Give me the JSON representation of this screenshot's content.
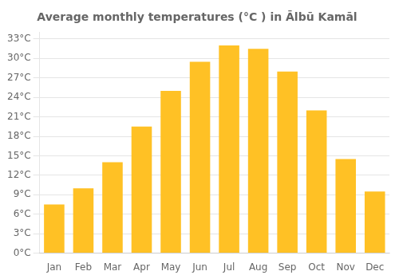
{
  "chart_data": {
    "type": "bar",
    "title": "Average monthly temperatures (°C ) in Ālbū Kamāl",
    "categories": [
      "Jan",
      "Feb",
      "Mar",
      "Apr",
      "May",
      "Jun",
      "Jul",
      "Aug",
      "Sep",
      "Oct",
      "Nov",
      "Dec"
    ],
    "values": [
      7.5,
      10.0,
      14.0,
      19.5,
      25.0,
      29.5,
      32.0,
      31.5,
      28.0,
      22.0,
      14.5,
      9.5
    ],
    "color": "#FFC125",
    "ylim": [
      0,
      34
    ],
    "yticks": [
      {
        "value": 0,
        "label": "0°C"
      },
      {
        "value": 3,
        "label": "3°C"
      },
      {
        "value": 6,
        "label": "6°C"
      },
      {
        "value": 9,
        "label": "9°C"
      },
      {
        "value": 12,
        "label": "12°C"
      },
      {
        "value": 15,
        "label": "15°C"
      },
      {
        "value": 18,
        "label": "18°C"
      },
      {
        "value": 21,
        "label": "21°C"
      },
      {
        "value": 24,
        "label": "24°C"
      },
      {
        "value": 27,
        "label": "27°C"
      },
      {
        "value": 30,
        "label": "30°C"
      },
      {
        "value": 33,
        "label": "33°C"
      }
    ],
    "grid": true
  }
}
